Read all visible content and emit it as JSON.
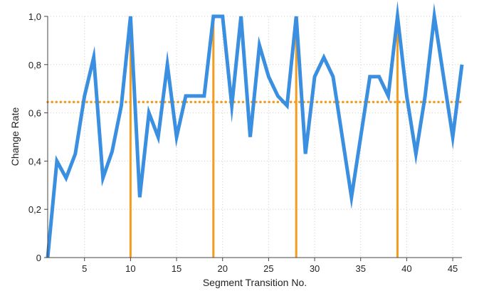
{
  "chart_data": {
    "type": "line",
    "xlabel": "Segment Transition No.",
    "ylabel": "Change Rate",
    "xlim": [
      1,
      46
    ],
    "ylim": [
      0,
      1
    ],
    "x_ticks": [
      5,
      10,
      15,
      20,
      25,
      30,
      35,
      40,
      45
    ],
    "y_ticks": [
      {
        "value": 0,
        "label": "0"
      },
      {
        "value": 0.2,
        "label": "0,2"
      },
      {
        "value": 0.4,
        "label": "0,4"
      },
      {
        "value": 0.6,
        "label": "0,6"
      },
      {
        "value": 0.8,
        "label": "0,8"
      },
      {
        "value": 1.0,
        "label": "1,0"
      }
    ],
    "grid": true,
    "series": [
      {
        "color": "#3b8fe0",
        "x": [
          1,
          2,
          3,
          4,
          5,
          6,
          7,
          8,
          9,
          10,
          11,
          12,
          13,
          14,
          15,
          16,
          17,
          18,
          19,
          20,
          21,
          22,
          23,
          24,
          25,
          26,
          27,
          28,
          29,
          30,
          31,
          32,
          33,
          34,
          35,
          36,
          37,
          38,
          39,
          40,
          41,
          42,
          43,
          44,
          45,
          46
        ],
        "y": [
          0,
          0.4,
          0.33,
          0.43,
          0.67,
          0.83,
          0.33,
          0.44,
          0.63,
          1.0,
          0.25,
          0.6,
          0.5,
          0.8,
          0.5,
          0.67,
          0.67,
          0.67,
          1.0,
          1.0,
          0.63,
          1.0,
          0.5,
          0.88,
          0.75,
          0.67,
          0.63,
          1.0,
          0.43,
          0.75,
          0.83,
          0.75,
          0.5,
          0.25,
          0.5,
          0.75,
          0.75,
          0.67,
          1.0,
          0.67,
          0.43,
          0.67,
          1.0,
          0.75,
          0.5,
          0.8
        ]
      }
    ],
    "threshold": {
      "value": 0.645,
      "color": "#f39c1f",
      "style": "dotted"
    },
    "vertical_markers": {
      "x": [
        10,
        19,
        28,
        39
      ],
      "color": "#f39c1f"
    }
  }
}
